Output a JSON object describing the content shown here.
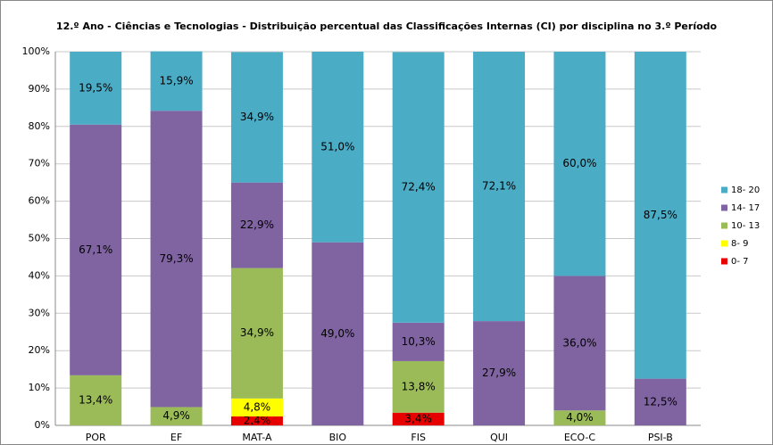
{
  "chart_data": {
    "type": "bar",
    "stacked": true,
    "title": "12.º Ano  - Ciências e Tecnologias  - Distribuição percentual das Classificações Internas (CI) por disciplina no 3.º Período",
    "categories": [
      "POR",
      "EF",
      "MAT-A",
      "BIO",
      "FIS",
      "QUI",
      "ECO-C",
      "PSI-B"
    ],
    "series": [
      {
        "name": "0- 7",
        "color": "#e60000",
        "values": [
          null,
          null,
          2.4,
          null,
          3.4,
          null,
          null,
          null
        ],
        "value_labels": [
          null,
          null,
          "2,4%",
          null,
          "3,4%",
          null,
          null,
          null
        ]
      },
      {
        "name": "8- 9",
        "color": "#ffff00",
        "values": [
          null,
          null,
          4.8,
          null,
          null,
          null,
          null,
          null
        ],
        "value_labels": [
          null,
          null,
          "4,8%",
          null,
          null,
          null,
          null,
          null
        ]
      },
      {
        "name": "10- 13",
        "color": "#9bbb59",
        "values": [
          13.4,
          4.9,
          34.9,
          null,
          13.8,
          null,
          4.0,
          null
        ],
        "value_labels": [
          "13,4%",
          "4,9%",
          "34,9%",
          null,
          "13,8%",
          null,
          "4,0%",
          null
        ]
      },
      {
        "name": "14- 17",
        "color": "#8064a2",
        "values": [
          67.1,
          79.3,
          22.9,
          49.0,
          10.3,
          27.9,
          36.0,
          12.5
        ],
        "value_labels": [
          "67,1%",
          "79,3%",
          "22,9%",
          "49,0%",
          "10,3%",
          "27,9%",
          "36,0%",
          "12,5%"
        ]
      },
      {
        "name": "18- 20",
        "color": "#4bacc6",
        "values": [
          19.5,
          15.9,
          34.9,
          51.0,
          72.4,
          72.1,
          60.0,
          87.5
        ],
        "value_labels": [
          "19,5%",
          "15,9%",
          "34,9%",
          "51,0%",
          "72,4%",
          "72,1%",
          "60,0%",
          "87,5%"
        ]
      }
    ],
    "ylim": [
      0,
      100
    ],
    "yticks": [
      {
        "value": 0,
        "label": "0%"
      },
      {
        "value": 10,
        "label": "10%"
      },
      {
        "value": 20,
        "label": "20%"
      },
      {
        "value": 30,
        "label": "30%"
      },
      {
        "value": 40,
        "label": "40%"
      },
      {
        "value": 50,
        "label": "50%"
      },
      {
        "value": 60,
        "label": "60%"
      },
      {
        "value": 70,
        "label": "70%"
      },
      {
        "value": 80,
        "label": "80%"
      },
      {
        "value": 90,
        "label": "90%"
      },
      {
        "value": 100,
        "label": "100%"
      }
    ],
    "grid": true,
    "legend": "right"
  }
}
